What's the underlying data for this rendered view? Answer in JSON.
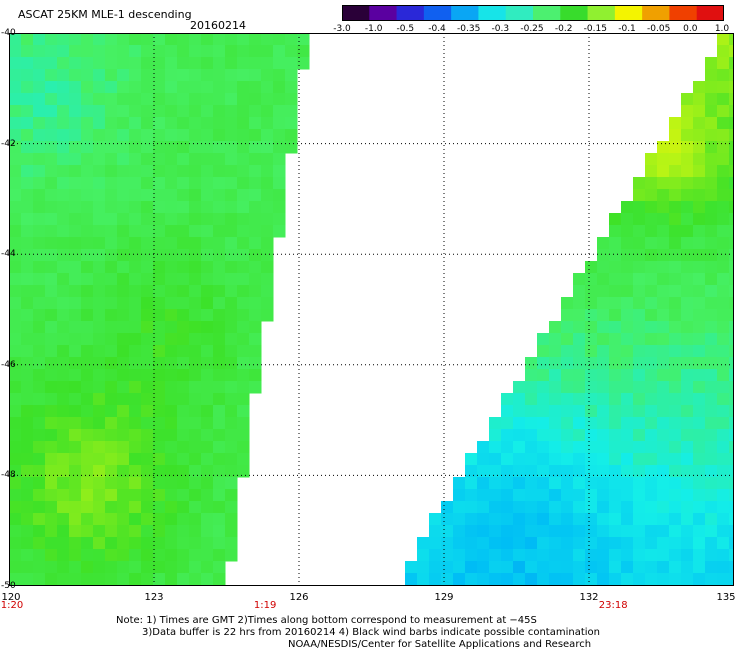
{
  "header": {
    "title": "ASCAT 25KM MLE-1 descending",
    "date": "20160214"
  },
  "colorbar": {
    "ticks": [
      "-3.0",
      "-1.0",
      "-0.5",
      "-0.4",
      "-0.35",
      "-0.3",
      "-0.25",
      "-0.2",
      "-0.15",
      "-0.1",
      "-0.05",
      "0.0",
      "1.0"
    ],
    "colors": [
      "#2a0038",
      "#5a00a0",
      "#2a28d8",
      "#1060f0",
      "#0aa6f4",
      "#17e4e8",
      "#30ecc0",
      "#4cf070",
      "#38dc2c",
      "#90f030",
      "#f4f400",
      "#f0a000",
      "#f04000",
      "#e01010"
    ]
  },
  "map": {
    "lat_labels": [
      "-40",
      "-42",
      "-44",
      "-46",
      "-48",
      "-50"
    ],
    "lon_labels": [
      "120",
      "123",
      "126",
      "129",
      "132",
      "135"
    ],
    "lat_range": [
      -50,
      -40
    ],
    "lon_range": [
      120,
      135
    ],
    "time_labels": [
      {
        "text": "1:20",
        "lon": 120
      },
      {
        "text": "1:19",
        "lon": 125.3
      },
      {
        "text": "23:18",
        "lon": 132.5
      }
    ]
  },
  "footer": {
    "line1": "Note: 1) Times are GMT 2)Times along bottom correspond to measurement at −45S",
    "line2": "3)Data buffer is 22 hrs from 20160214 4) Black wind barbs indicate possible contamination",
    "line3": "NOAA/NESDIS/Center for Satellite Applications and Research"
  }
}
